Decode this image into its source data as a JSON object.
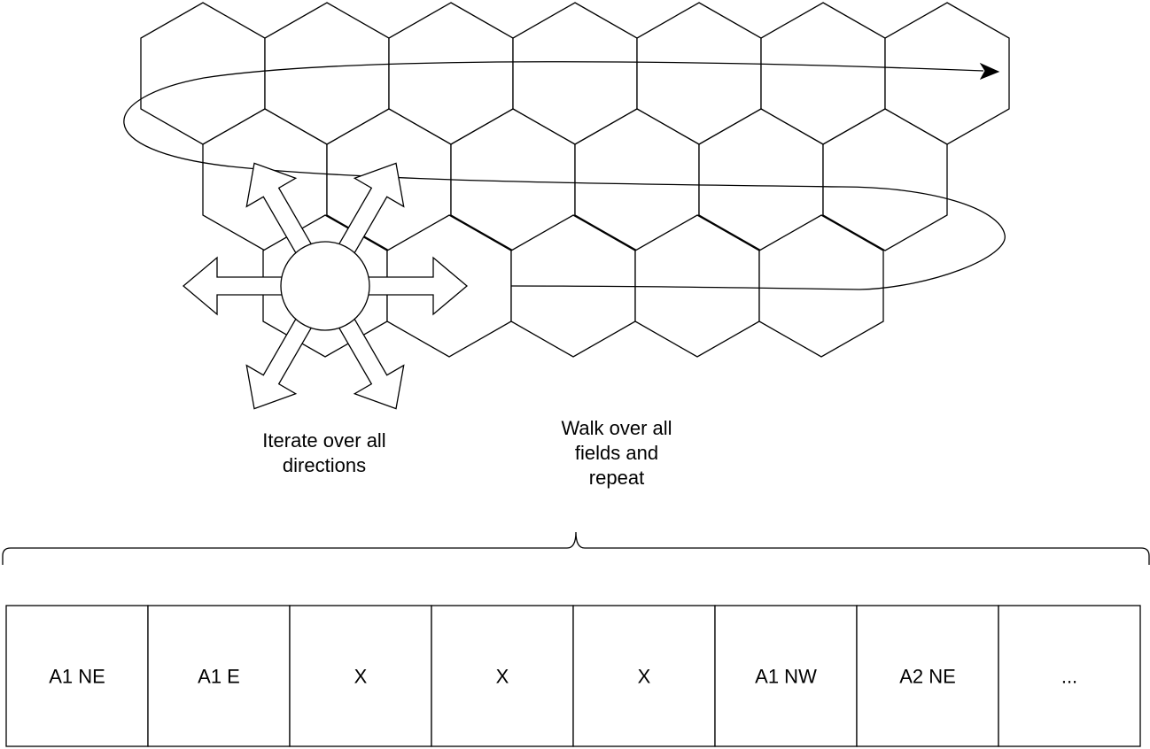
{
  "labels": {
    "iterate": "Iterate over all directions",
    "walk": "Walk over all fields and repeat"
  },
  "sequence": {
    "cells": [
      "A1 NE",
      "A1 E",
      "X",
      "X",
      "X",
      "A1 NW",
      "A2 NE",
      "..."
    ]
  },
  "grid": {
    "rows": [
      {
        "count": 7
      },
      {
        "count": 6
      },
      {
        "count": 5
      }
    ]
  },
  "directions": [
    "north-east",
    "east",
    "south-east",
    "south-west",
    "west",
    "north-west"
  ],
  "colors": {
    "stroke": "#000000",
    "background": "#ffffff"
  }
}
